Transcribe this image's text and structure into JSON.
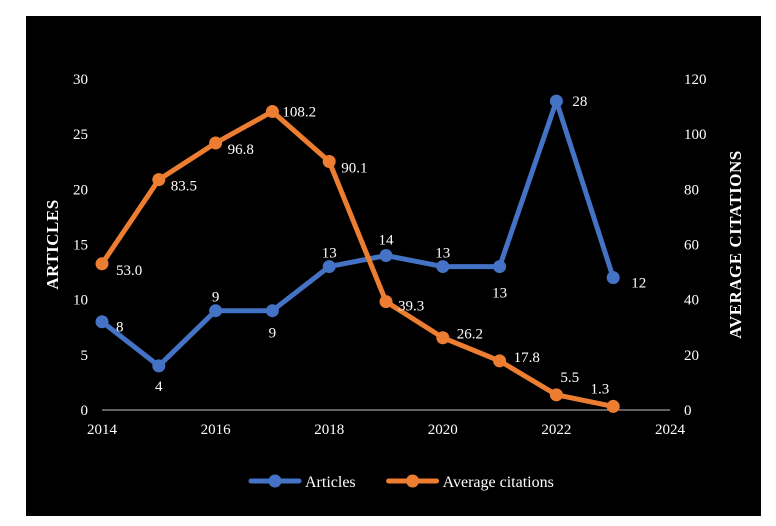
{
  "chart_data": {
    "type": "line",
    "title": "",
    "xlabel": "",
    "ylabel": "ARTICLES",
    "y2label": "AVERAGE CITATIONS",
    "xlim": [
      2014,
      2024
    ],
    "ylim": [
      0,
      30
    ],
    "y2lim": [
      0,
      120
    ],
    "x_ticks": [
      2014,
      2016,
      2018,
      2020,
      2022,
      2024
    ],
    "y_ticks": [
      0,
      5,
      10,
      15,
      20,
      25,
      30
    ],
    "y2_ticks": [
      0,
      20,
      40,
      60,
      80,
      100,
      120
    ],
    "grid": false,
    "legend_position": "bottom",
    "series": [
      {
        "name": "Articles",
        "axis": "left",
        "color": "#4472C4",
        "x": [
          2014,
          2015,
          2016,
          2017,
          2018,
          2019,
          2020,
          2021,
          2022,
          2023
        ],
        "values": [
          8,
          4,
          9,
          9,
          13,
          14,
          13,
          13,
          28,
          12
        ],
        "labels": [
          "8",
          "4",
          "9",
          "9",
          "13",
          "14",
          "13",
          "13",
          "28",
          "12"
        ]
      },
      {
        "name": "Average citations",
        "axis": "right",
        "color": "#ED7D31",
        "x": [
          2014,
          2015,
          2016,
          2017,
          2018,
          2019,
          2020,
          2021,
          2022,
          2023
        ],
        "values": [
          53.0,
          83.5,
          96.8,
          108.2,
          90.1,
          39.3,
          26.2,
          17.8,
          5.5,
          1.3
        ],
        "labels": [
          "53.0",
          "83.5",
          "96.8",
          "108.2",
          "90.1",
          "39.3",
          "26.2",
          "17.8",
          "5.5",
          "1.3"
        ]
      }
    ]
  }
}
